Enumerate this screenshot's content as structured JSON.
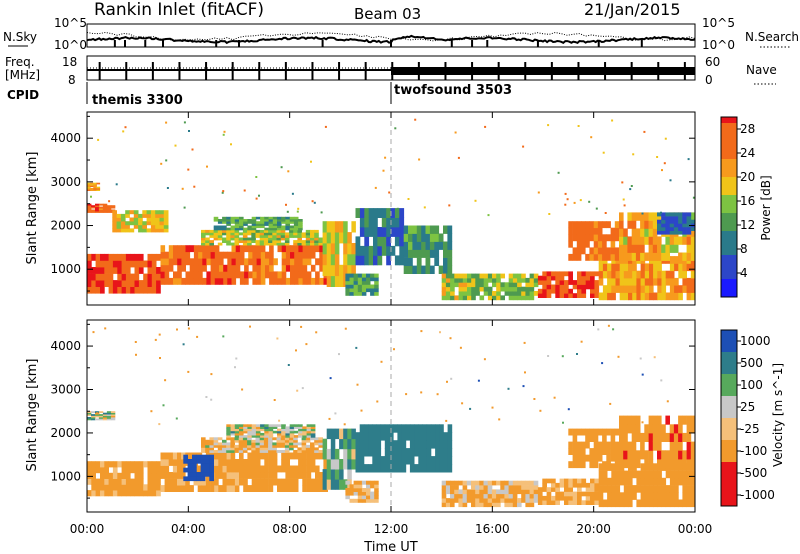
{
  "header": {
    "station": "Rankin Inlet (fitACF)",
    "beam": "Beam 03",
    "date": "21/Jan/2015"
  },
  "top_panel": {
    "nsky_label": "N.Sky",
    "nsearch_label": "N.Search",
    "nsky_ticks": [
      "10^5",
      "10^0"
    ],
    "nsearch_ticks": [
      "10^5",
      "10^0"
    ],
    "freq_label_1": "Freq.",
    "freq_label_2": "[MHz]",
    "freq_ticks": [
      "18",
      "8"
    ],
    "nave_label": "Nave",
    "nave_ticks": [
      "60",
      "0"
    ],
    "cpid_label": "CPID",
    "modes": [
      {
        "name": "themis 3300",
        "start": 0,
        "end": 12
      },
      {
        "name": "twofsound 3503",
        "start": 12,
        "end": 24
      }
    ]
  },
  "chart_data": [
    {
      "type": "heatmap",
      "title": "",
      "xlabel": "Time UT",
      "ylabel": "Slant Range [km]",
      "xlim": [
        0,
        24
      ],
      "ylim": [
        180,
        4600
      ],
      "x_ticks": [
        "00:00",
        "04:00",
        "08:00",
        "12:00",
        "16:00",
        "20:00",
        "00:00"
      ],
      "y_ticks": [
        "1000",
        "2000",
        "3000",
        "4000"
      ],
      "colorbar": {
        "label": "Power [dB]",
        "ticks": [
          "28",
          "24",
          "20",
          "16",
          "12",
          "8",
          "4"
        ],
        "range": [
          0,
          30
        ]
      },
      "bands": [
        {
          "t0": 0.0,
          "t1": 2.9,
          "r0": 450,
          "r1": 1350,
          "v": 29
        },
        {
          "t0": 0.0,
          "t1": 1.1,
          "r0": 2300,
          "r1": 2500,
          "v": 27
        },
        {
          "t0": 0.0,
          "t1": 0.5,
          "r0": 2800,
          "r1": 2980,
          "v": 22
        },
        {
          "t0": 1.0,
          "t1": 3.2,
          "r0": 1850,
          "r1": 2350,
          "v": 20
        },
        {
          "t0": 2.9,
          "t1": 9.5,
          "r0": 650,
          "r1": 1550,
          "v": 27
        },
        {
          "t0": 4.5,
          "t1": 9.3,
          "r0": 1550,
          "r1": 1900,
          "v": 18
        },
        {
          "t0": 5.0,
          "t1": 8.5,
          "r0": 1900,
          "r1": 2200,
          "v": 14
        },
        {
          "t0": 9.3,
          "t1": 10.6,
          "r0": 600,
          "r1": 2100,
          "v": 20
        },
        {
          "t0": 10.2,
          "t1": 11.5,
          "r0": 400,
          "r1": 900,
          "v": 14
        },
        {
          "t0": 10.6,
          "t1": 12.5,
          "r0": 1100,
          "r1": 2400,
          "v": 10
        },
        {
          "t0": 12.5,
          "t1": 14.4,
          "r0": 900,
          "r1": 2000,
          "v": 12
        },
        {
          "t0": 14.0,
          "t1": 15.0,
          "r0": 300,
          "r1": 900,
          "v": 18
        },
        {
          "t0": 15.0,
          "t1": 17.8,
          "r0": 300,
          "r1": 900,
          "v": 16
        },
        {
          "t0": 17.8,
          "t1": 20.2,
          "r0": 350,
          "r1": 950,
          "v": 29
        },
        {
          "t0": 20.2,
          "t1": 24.0,
          "r0": 300,
          "r1": 1300,
          "v": 22
        },
        {
          "t0": 19.0,
          "t1": 21.0,
          "r0": 1200,
          "r1": 2100,
          "v": 26
        },
        {
          "t0": 21.0,
          "t1": 24.0,
          "r0": 1200,
          "r1": 2300,
          "v": 21
        },
        {
          "t0": 22.5,
          "t1": 24.0,
          "r0": 1800,
          "r1": 2300,
          "v": 8
        }
      ]
    },
    {
      "type": "heatmap",
      "title": "",
      "xlabel": "Time UT",
      "ylabel": "Slant Range [km]",
      "xlim": [
        0,
        24
      ],
      "ylim": [
        180,
        4600
      ],
      "x_ticks": [
        "00:00",
        "04:00",
        "08:00",
        "12:00",
        "16:00",
        "20:00",
        "00:00"
      ],
      "y_ticks": [
        "1000",
        "2000",
        "3000",
        "4000"
      ],
      "colorbar": {
        "label": "Velocity [m s^-1]",
        "ticks": [
          "1000",
          "500",
          "100",
          "25",
          "-25",
          "-100",
          "-500",
          "-1000"
        ]
      },
      "bands": [
        {
          "t0": 0.0,
          "t1": 2.9,
          "r0": 550,
          "r1": 1350,
          "v": -200
        },
        {
          "t0": 0.0,
          "t1": 1.1,
          "r0": 2300,
          "r1": 2500,
          "v": 0
        },
        {
          "t0": 2.9,
          "t1": 6.0,
          "r0": 650,
          "r1": 1550,
          "v": -150
        },
        {
          "t0": 3.8,
          "t1": 5.0,
          "r0": 900,
          "r1": 1500,
          "v": 700
        },
        {
          "t0": 6.0,
          "t1": 9.5,
          "r0": 650,
          "r1": 1550,
          "v": -300
        },
        {
          "t0": 4.5,
          "t1": 9.3,
          "r0": 1550,
          "r1": 1900,
          "v": -80
        },
        {
          "t0": 5.5,
          "t1": 9.0,
          "r0": 1900,
          "r1": 2200,
          "v": 0
        },
        {
          "t0": 9.3,
          "t1": 10.6,
          "r0": 700,
          "r1": 2100,
          "v": 80
        },
        {
          "t0": 10.2,
          "t1": 11.5,
          "r0": 400,
          "r1": 900,
          "v": -120
        },
        {
          "t0": 10.6,
          "t1": 14.4,
          "r0": 1100,
          "r1": 2200,
          "v": 300
        },
        {
          "t0": 14.0,
          "t1": 17.8,
          "r0": 300,
          "r1": 900,
          "v": -100
        },
        {
          "t0": 17.8,
          "t1": 20.2,
          "r0": 350,
          "r1": 950,
          "v": -150
        },
        {
          "t0": 19.0,
          "t1": 21.0,
          "r0": 1200,
          "r1": 2100,
          "v": -350
        },
        {
          "t0": 20.2,
          "t1": 24.0,
          "r0": 300,
          "r1": 1300,
          "v": -250
        },
        {
          "t0": 21.0,
          "t1": 24.0,
          "r0": 1200,
          "r1": 2400,
          "v": -400
        }
      ]
    }
  ],
  "colors": {
    "background": "#ffffff",
    "axis": "#000000",
    "mode_divider": "#aaaaaa"
  }
}
